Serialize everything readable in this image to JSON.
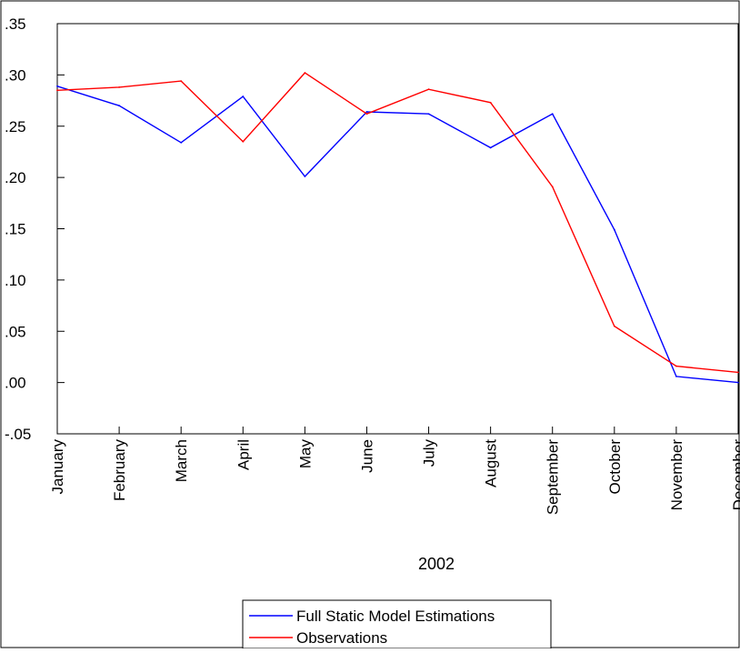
{
  "chart_data": {
    "type": "line",
    "categories": [
      "January",
      "February",
      "March",
      "April",
      "May",
      "June",
      "July",
      "August",
      "September",
      "October",
      "November",
      "December"
    ],
    "x_group_label": "2002",
    "ylim": [
      -0.05,
      0.35
    ],
    "y_ticks": [
      {
        "value": -0.05,
        "label": "-.05"
      },
      {
        "value": 0.0,
        "label": ".00"
      },
      {
        "value": 0.05,
        "label": ".05"
      },
      {
        "value": 0.1,
        "label": ".10"
      },
      {
        "value": 0.15,
        "label": ".15"
      },
      {
        "value": 0.2,
        "label": ".20"
      },
      {
        "value": 0.25,
        "label": ".25"
      },
      {
        "value": 0.3,
        "label": ".30"
      },
      {
        "value": 0.35,
        "label": ".35"
      }
    ],
    "grid": false,
    "legend_position": "bottom",
    "series": [
      {
        "name": "Full Static Model Estimations",
        "color": "#0000ff",
        "values": [
          0.289,
          0.27,
          0.234,
          0.279,
          0.201,
          0.264,
          0.262,
          0.229,
          0.262,
          0.149,
          0.006,
          0.0
        ]
      },
      {
        "name": "Observations",
        "color": "#ff0000",
        "values": [
          0.285,
          0.288,
          0.294,
          0.235,
          0.302,
          0.262,
          0.286,
          0.273,
          0.191,
          0.055,
          0.016,
          0.01
        ]
      }
    ]
  }
}
